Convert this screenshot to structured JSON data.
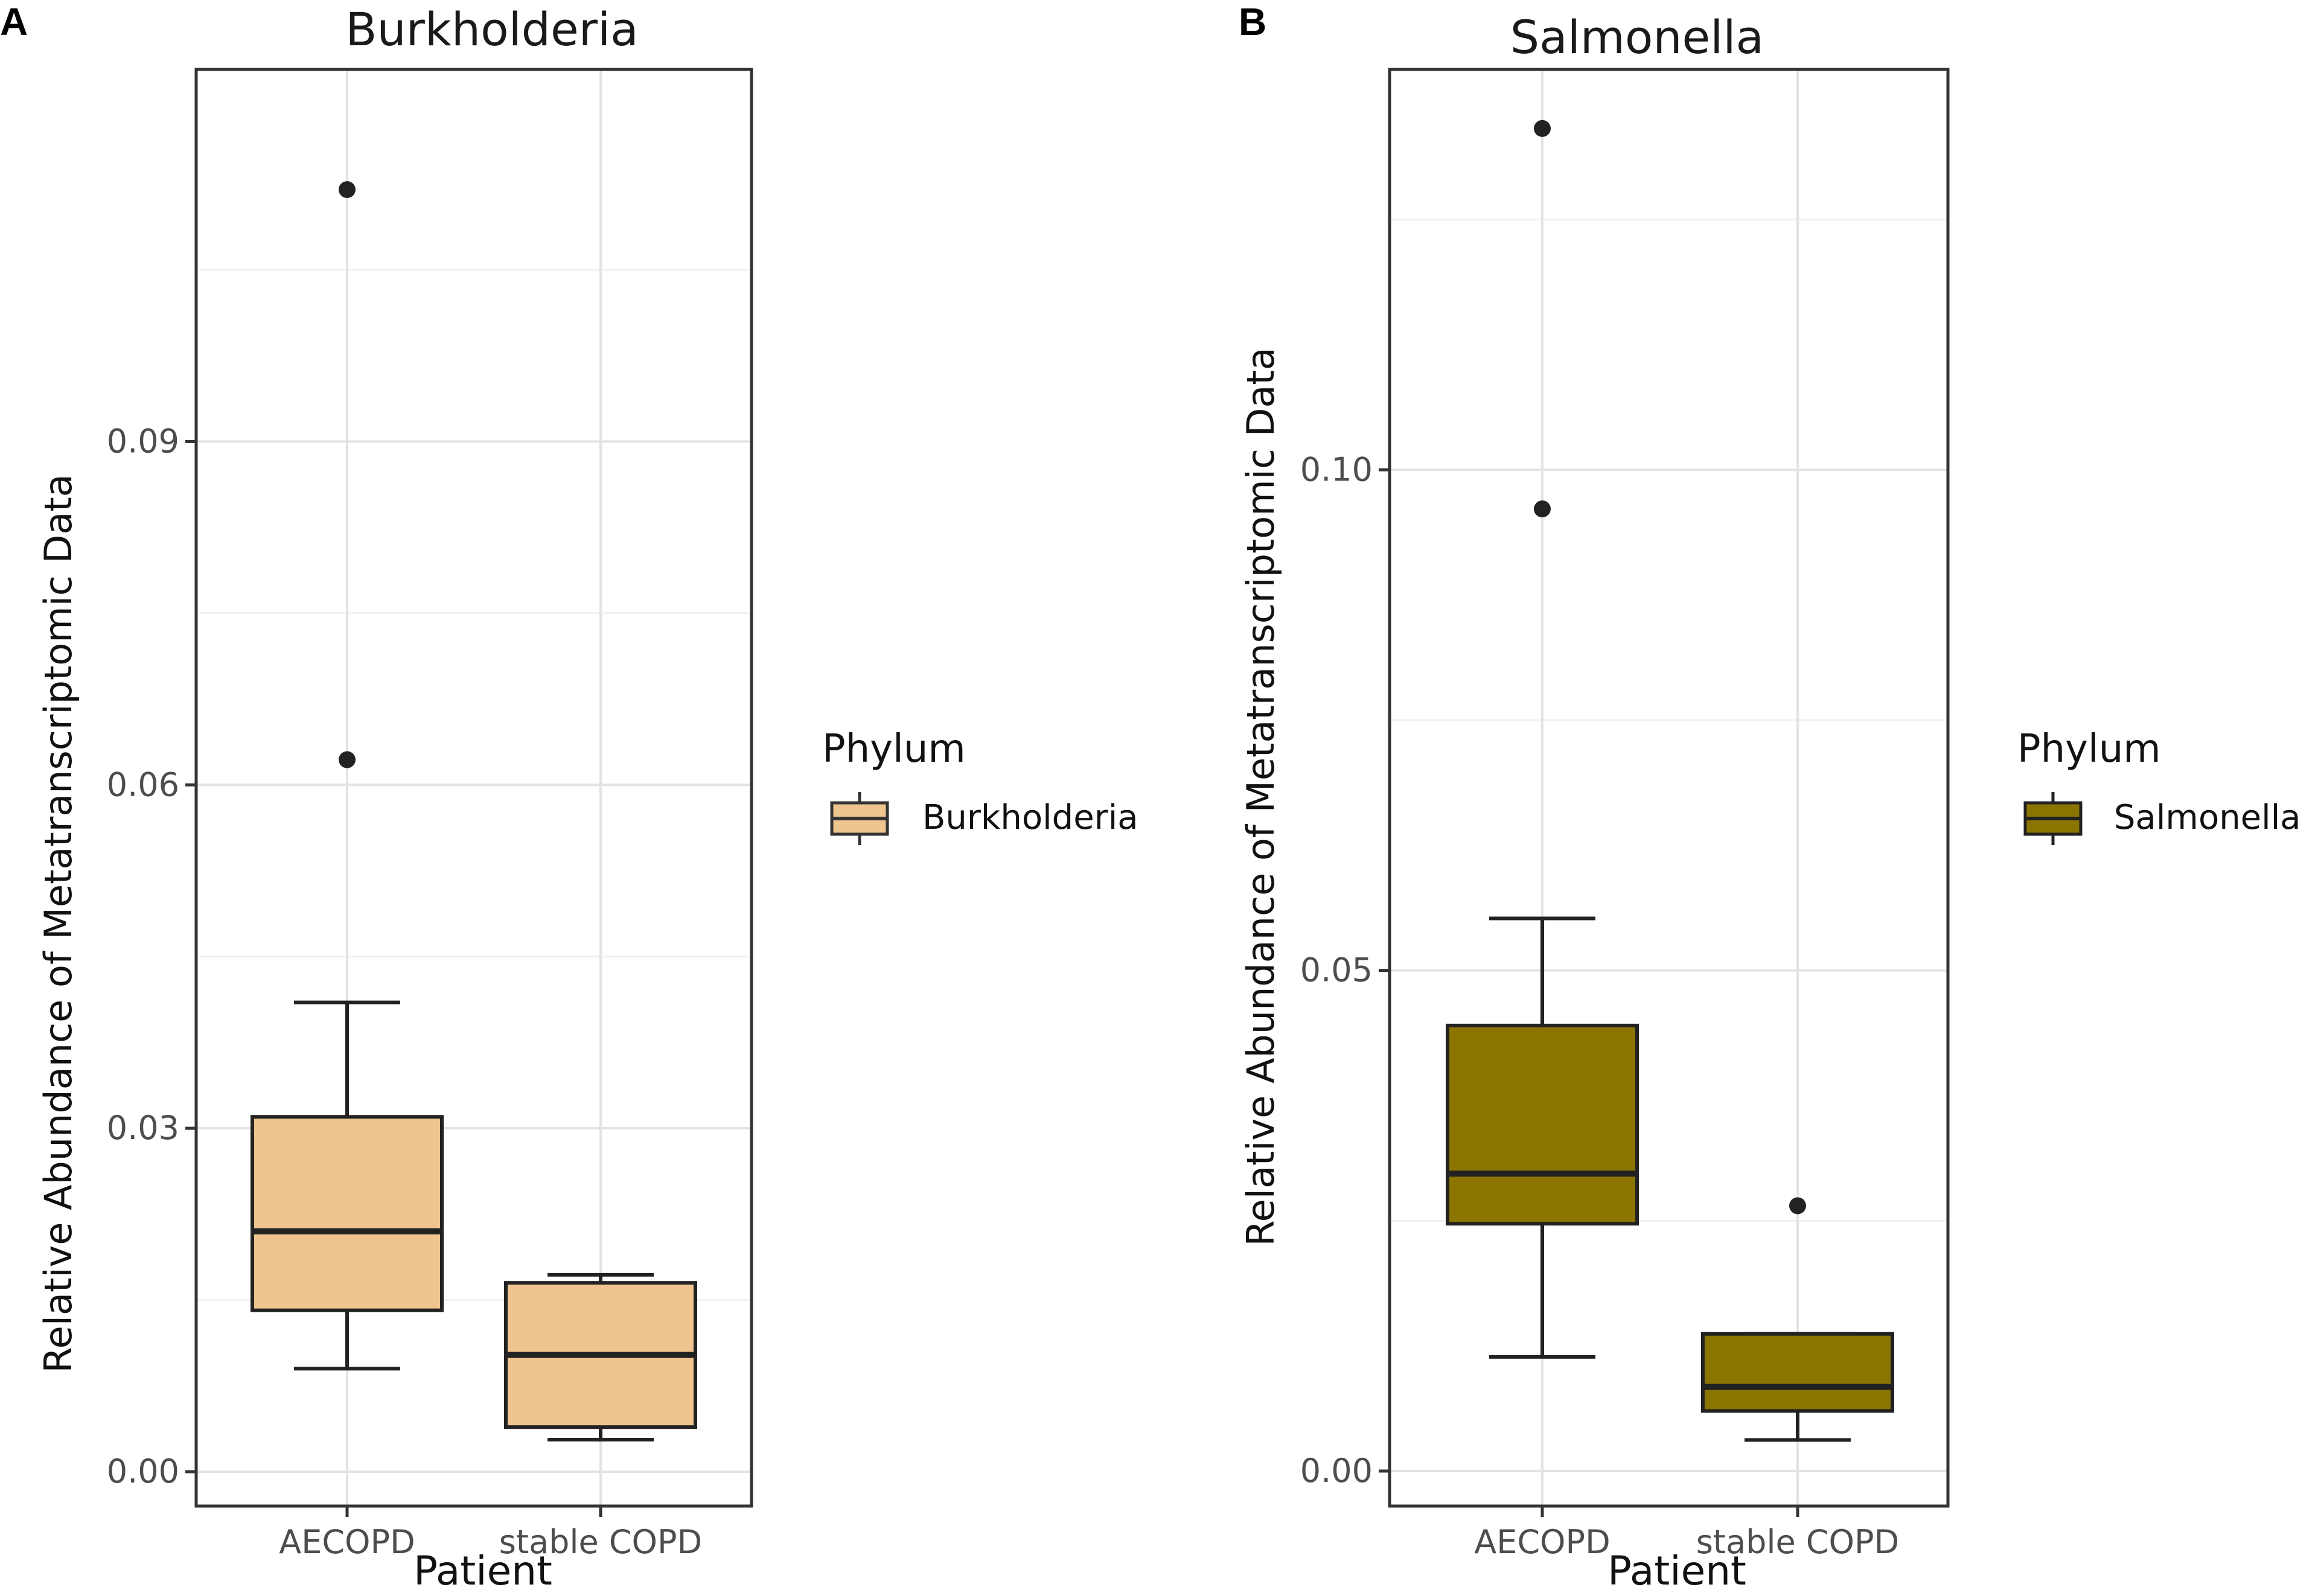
{
  "chart_data": [
    {
      "panel": "A",
      "type": "boxplot",
      "title": "Burkholderia",
      "xlabel": "Patient",
      "ylabel": "Relative Abundance of Metatranscriptomic Data",
      "categories": [
        "AECOPD",
        "stable COPD"
      ],
      "ylim": [
        -0.003,
        0.1225
      ],
      "yticks": [
        0,
        0.03,
        0.06,
        0.09
      ],
      "ytick_labels": [
        "0.00",
        "0.03",
        "0.06",
        "0.09"
      ],
      "grid": true,
      "fill_color": "#EEC48F",
      "legend": {
        "title": "Phylum",
        "entries": [
          "Burkholderia"
        ],
        "placement": "right"
      },
      "boxes": [
        {
          "category": "AECOPD",
          "whisker_low": 0.009,
          "q1": 0.0141,
          "median": 0.021,
          "q3": 0.031,
          "whisker_high": 0.041,
          "outliers": [
            0.0622,
            0.112
          ]
        },
        {
          "category": "stable COPD",
          "whisker_low": 0.0028,
          "q1": 0.0039,
          "median": 0.0102,
          "q3": 0.0165,
          "whisker_high": 0.0172,
          "outliers": []
        }
      ]
    },
    {
      "panel": "B",
      "type": "boxplot",
      "title": "Salmonella",
      "xlabel": "Patient",
      "ylabel": "Relative Abundance of Metatranscriptomic Data",
      "categories": [
        "AECOPD",
        "stable COPD"
      ],
      "ylim": [
        -0.0035,
        0.14
      ],
      "yticks": [
        0,
        0.05,
        0.1
      ],
      "ytick_labels": [
        "0.00",
        "0.05",
        "0.10"
      ],
      "grid": true,
      "fill_color": "#8B7500",
      "legend": {
        "title": "Phylum",
        "entries": [
          "Salmonella"
        ],
        "placement": "right"
      },
      "boxes": [
        {
          "category": "AECOPD",
          "whisker_low": 0.0114,
          "q1": 0.0247,
          "median": 0.0297,
          "q3": 0.0445,
          "whisker_high": 0.0552,
          "outliers": [
            0.0961,
            0.1341
          ]
        },
        {
          "category": "stable COPD",
          "whisker_low": 0.0031,
          "q1": 0.006,
          "median": 0.0084,
          "q3": 0.0137,
          "whisker_high": 0.0137,
          "outliers": [
            0.0265
          ]
        }
      ]
    }
  ]
}
